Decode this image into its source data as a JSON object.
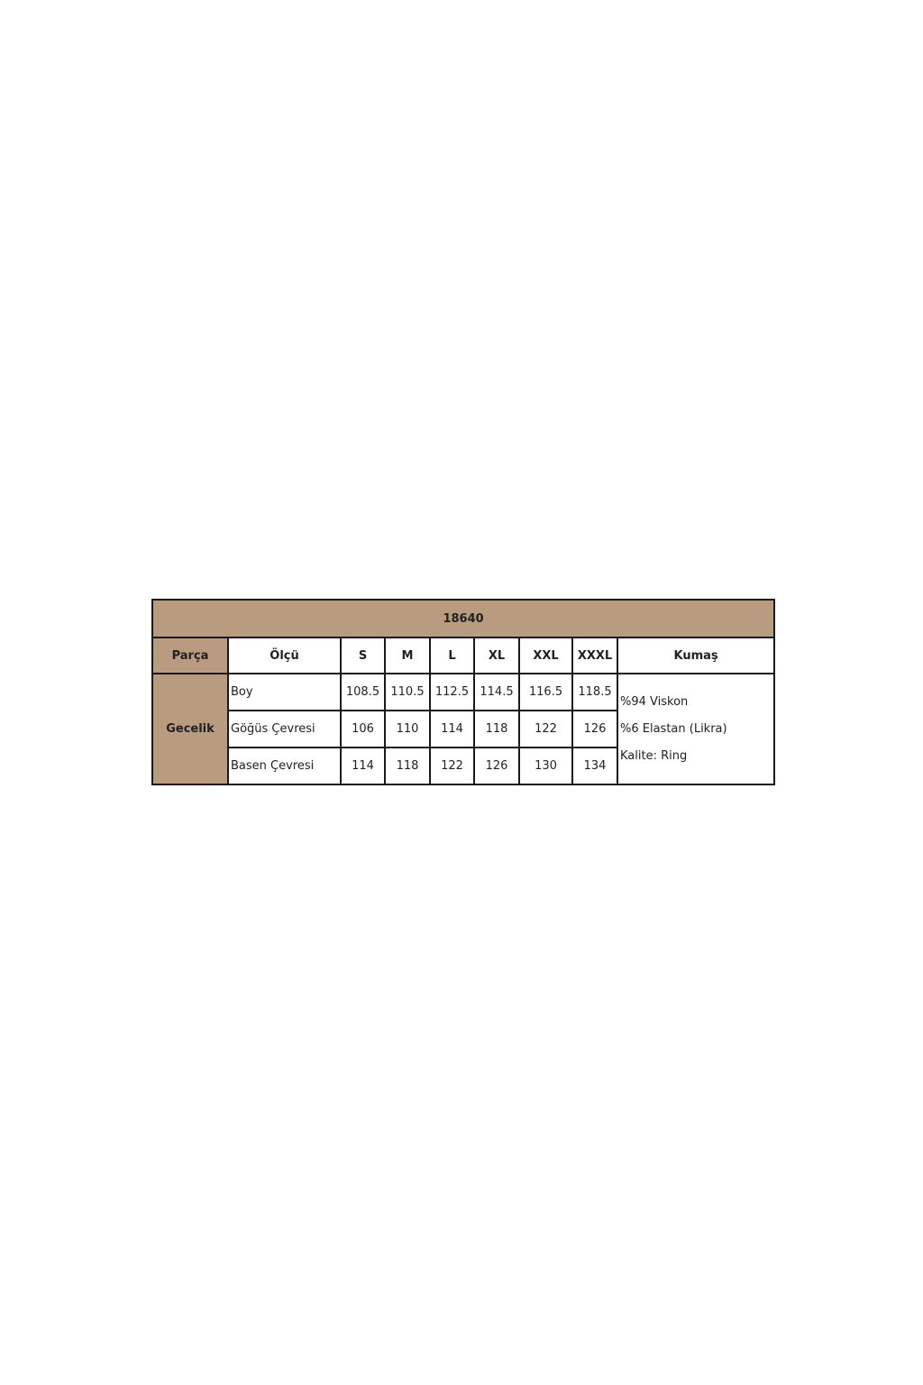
{
  "table": {
    "title": "18640",
    "headers": {
      "part": "Parça",
      "measure": "Ölçü",
      "sizes": [
        "S",
        "M",
        "L",
        "XL",
        "XXL",
        "XXXL"
      ],
      "fabric": "Kumaş"
    },
    "part_name": "Gecelik",
    "rows": [
      {
        "label": "Boy",
        "values": [
          "108.5",
          "110.5",
          "112.5",
          "114.5",
          "116.5",
          "118.5"
        ]
      },
      {
        "label": "Göğüs Çevresi",
        "values": [
          "106",
          "110",
          "114",
          "118",
          "122",
          "126"
        ]
      },
      {
        "label": "Basen Çevresi",
        "values": [
          "114",
          "118",
          "122",
          "126",
          "130",
          "134"
        ]
      }
    ],
    "fabric_lines": [
      "%94 Viskon",
      "%6 Elastan (Likra)",
      "Kalite: Ring"
    ],
    "header_color": "#b99b7f"
  }
}
